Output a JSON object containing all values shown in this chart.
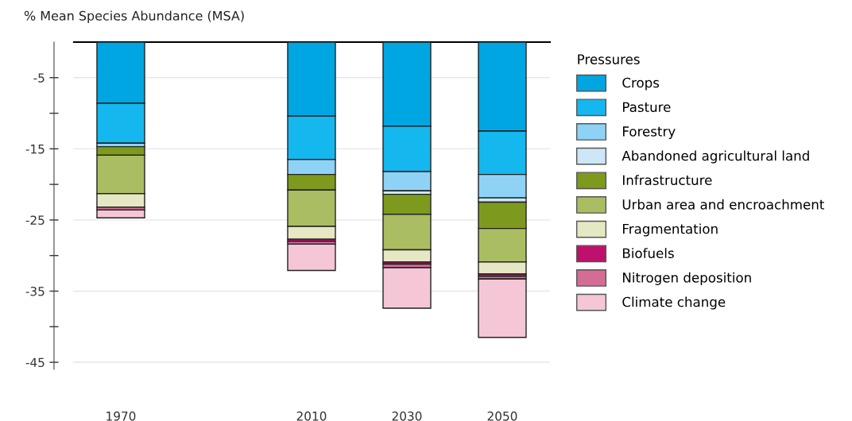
{
  "chart_data": {
    "type": "bar",
    "stacked": true,
    "ylabel": "% Mean Species Abundance (MSA)",
    "legend_title": "Pressures",
    "x": [
      1970,
      2010,
      2030,
      2050
    ],
    "xlim": [
      1956,
      2060
    ],
    "xticks": [
      1970,
      2010,
      2030,
      2050
    ],
    "ylim": [
      -46,
      0
    ],
    "yticks": [
      {
        "value": -5,
        "label": "-5"
      },
      {
        "value": -10,
        "label": null
      },
      {
        "value": -15,
        "label": "-15"
      },
      {
        "value": -20,
        "label": null
      },
      {
        "value": -25,
        "label": "-25"
      },
      {
        "value": -30,
        "label": null
      },
      {
        "value": -35,
        "label": "-35"
      },
      {
        "value": -40,
        "label": null
      },
      {
        "value": -45,
        "label": "-45"
      }
    ],
    "grid": "y",
    "legend": "right",
    "series": [
      {
        "name": "Crops",
        "color": "#00a6e2",
        "values": [
          -8.6,
          -10.4,
          -11.8,
          -12.5
        ]
      },
      {
        "name": "Pasture",
        "color": "#14b8ee",
        "values": [
          -5.6,
          -6.1,
          -6.4,
          -6.1
        ]
      },
      {
        "name": "Forestry",
        "color": "#8ed3f5",
        "values": [
          -0.5,
          -2.1,
          -2.7,
          -3.3
        ]
      },
      {
        "name": "Abandoned agricultural land",
        "color": "#cde6f8",
        "values": [
          0,
          0,
          -0.5,
          -0.6
        ]
      },
      {
        "name": "Infrastructure",
        "color": "#7d9a1e",
        "values": [
          -1.2,
          -2.2,
          -2.8,
          -3.7
        ]
      },
      {
        "name": "Urban area and encroachment",
        "color": "#aabd62",
        "values": [
          -5.4,
          -5.1,
          -5.0,
          -4.7
        ]
      },
      {
        "name": "Fragmentation",
        "color": "#e6e8c4",
        "values": [
          -1.9,
          -1.8,
          -1.7,
          -1.7
        ]
      },
      {
        "name": "Biofuels",
        "color": "#c0106e",
        "values": [
          0,
          -0.3,
          -0.3,
          -0.3
        ]
      },
      {
        "name": "Nitrogen deposition",
        "color": "#d46d95",
        "values": [
          -0.4,
          -0.4,
          -0.5,
          -0.4
        ]
      },
      {
        "name": "Climate change",
        "color": "#f4c6d6",
        "values": [
          -1.1,
          -3.7,
          -5.7,
          -8.2
        ]
      }
    ]
  }
}
